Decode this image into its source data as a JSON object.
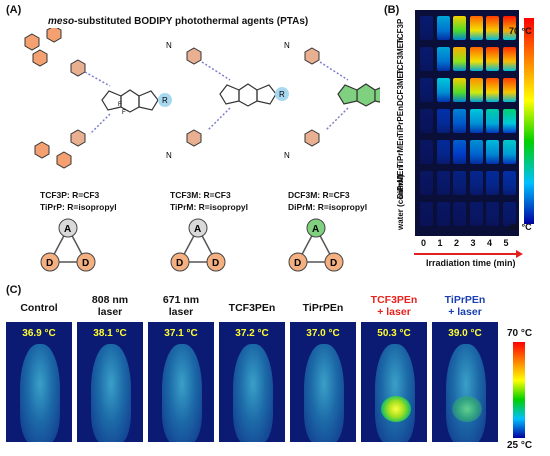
{
  "panelA": {
    "label": "(A)",
    "title_prefix": "meso",
    "title_rest": "-substituted BODIPY photothermal agents (PTAs)",
    "compounds": [
      {
        "line1": "TCF3P: R=CF3",
        "line2": "TiPrP: R=isopropyl",
        "center": "A",
        "left": "D",
        "right": "D",
        "accent": "#d9d9d9"
      },
      {
        "line1": "TCF3M: R=CF3",
        "line2": "TiPrM: R=isopropyl",
        "center": "A",
        "left": "D",
        "right": "D",
        "accent": "#d9d9d9"
      },
      {
        "line1": "DCF3M: R=CF3",
        "line2": "DiPrM: R=isopropyl",
        "center": "A",
        "left": "D",
        "right": "D",
        "accent": "#7fd07f"
      }
    ]
  },
  "panelB": {
    "label": "(B)",
    "rows": [
      "TCF3P",
      "TCF3MEn",
      "DCF3MEn",
      "TiPrPEn",
      "TiPrMEn",
      "DiPrMEn",
      "water (control)"
    ],
    "times": [
      "0",
      "1",
      "2",
      "3",
      "4",
      "5"
    ],
    "xlabel": "Irradiation time (min)",
    "scale_max": "70 °C",
    "scale_min": "25 °C",
    "intensity": [
      [
        0.05,
        0.35,
        0.75,
        0.9,
        0.95,
        1.0
      ],
      [
        0.05,
        0.35,
        0.8,
        0.9,
        0.95,
        0.97
      ],
      [
        0.05,
        0.4,
        0.75,
        0.85,
        0.92,
        0.95
      ],
      [
        0.03,
        0.15,
        0.3,
        0.4,
        0.45,
        0.5
      ],
      [
        0.03,
        0.12,
        0.25,
        0.32,
        0.38,
        0.42
      ],
      [
        0.03,
        0.05,
        0.08,
        0.1,
        0.12,
        0.14
      ],
      [
        0.02,
        0.03,
        0.03,
        0.04,
        0.04,
        0.05
      ]
    ]
  },
  "panelC": {
    "label": "(C)",
    "scale_max": "70 °C",
    "scale_min": "25 °C",
    "groups": [
      {
        "line1": "Control",
        "line2": "",
        "temp": "36.9 °C",
        "color": "#111111",
        "hot": 0
      },
      {
        "line1": "808 nm",
        "line2": "laser",
        "temp": "38.1 °C",
        "color": "#111111",
        "hot": 0
      },
      {
        "line1": "671 nm",
        "line2": "laser",
        "temp": "37.1 °C",
        "color": "#111111",
        "hot": 0
      },
      {
        "line1": "TCF3PEn",
        "line2": "",
        "temp": "37.2 °C",
        "color": "#111111",
        "hot": 0
      },
      {
        "line1": "TiPrPEn",
        "line2": "",
        "temp": "37.0 °C",
        "color": "#111111",
        "hot": 0
      },
      {
        "line1": "TCF3PEn",
        "line2": "+ laser",
        "temp": "50.3 °C",
        "color": "#e8221c",
        "hot": 2
      },
      {
        "line1": "TiPrPEn",
        "line2": "+ laser",
        "temp": "39.0 °C",
        "color": "#1a3fb0",
        "hot": 1
      }
    ]
  }
}
